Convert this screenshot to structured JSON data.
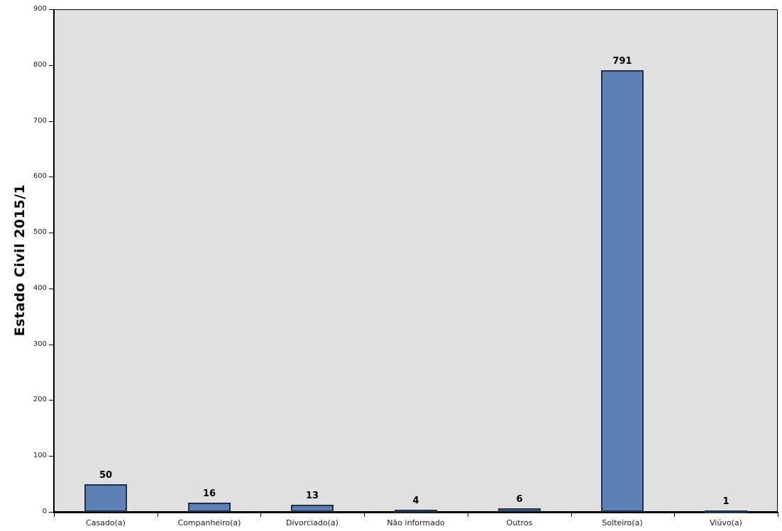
{
  "chart_data": {
    "type": "bar",
    "title": "",
    "xlabel": "",
    "ylabel": "Estado Civil 2015/1",
    "categories": [
      "Casado(a)",
      "Companheiro(a)",
      "Divorciado(a)",
      "Não informado",
      "Outros",
      "Solteiro(a)",
      "Viúvo(a)"
    ],
    "values": [
      50,
      16,
      13,
      4,
      6,
      791,
      1
    ],
    "data_labels_shown": true,
    "ylim": [
      0,
      900
    ],
    "yticks": [
      0,
      100,
      200,
      300,
      400,
      500,
      600,
      700,
      800,
      900
    ],
    "grid": false,
    "legend": "none",
    "colors": {
      "bar_fill": "#5B80B5",
      "bar_border": "#1F3048",
      "plot_background": "#E0E0E0",
      "page_background": "#FFFFFF",
      "axis": "#000000",
      "text": "#000000"
    }
  }
}
